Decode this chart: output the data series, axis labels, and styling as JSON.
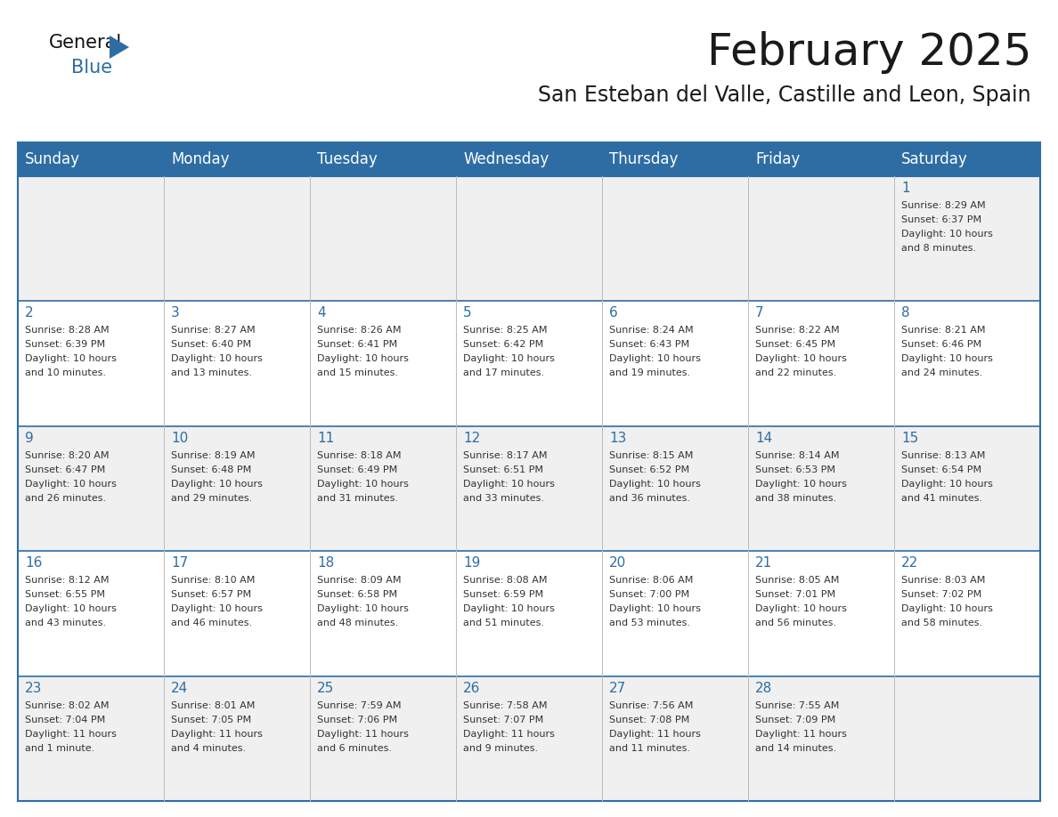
{
  "title": "February 2025",
  "subtitle": "San Esteban del Valle, Castille and Leon, Spain",
  "header_bg": "#2E6DA4",
  "header_text": "#FFFFFF",
  "day_names": [
    "Sunday",
    "Monday",
    "Tuesday",
    "Wednesday",
    "Thursday",
    "Friday",
    "Saturday"
  ],
  "row_bg_odd": "#F0F0F0",
  "row_bg_even": "#FFFFFF",
  "cell_text_color": "#333333",
  "date_number_color": "#2E6DA4",
  "separator_color": "#2E6DA4",
  "title_fontsize": 36,
  "subtitle_fontsize": 17,
  "header_fontsize": 12,
  "day_num_fontsize": 11,
  "cell_fontsize": 8,
  "days": [
    {
      "day": 1,
      "col": 6,
      "row": 0,
      "sunrise": "8:29 AM",
      "sunset": "6:37 PM",
      "daylight_line1": "Daylight: 10 hours",
      "daylight_line2": "and 8 minutes."
    },
    {
      "day": 2,
      "col": 0,
      "row": 1,
      "sunrise": "8:28 AM",
      "sunset": "6:39 PM",
      "daylight_line1": "Daylight: 10 hours",
      "daylight_line2": "and 10 minutes."
    },
    {
      "day": 3,
      "col": 1,
      "row": 1,
      "sunrise": "8:27 AM",
      "sunset": "6:40 PM",
      "daylight_line1": "Daylight: 10 hours",
      "daylight_line2": "and 13 minutes."
    },
    {
      "day": 4,
      "col": 2,
      "row": 1,
      "sunrise": "8:26 AM",
      "sunset": "6:41 PM",
      "daylight_line1": "Daylight: 10 hours",
      "daylight_line2": "and 15 minutes."
    },
    {
      "day": 5,
      "col": 3,
      "row": 1,
      "sunrise": "8:25 AM",
      "sunset": "6:42 PM",
      "daylight_line1": "Daylight: 10 hours",
      "daylight_line2": "and 17 minutes."
    },
    {
      "day": 6,
      "col": 4,
      "row": 1,
      "sunrise": "8:24 AM",
      "sunset": "6:43 PM",
      "daylight_line1": "Daylight: 10 hours",
      "daylight_line2": "and 19 minutes."
    },
    {
      "day": 7,
      "col": 5,
      "row": 1,
      "sunrise": "8:22 AM",
      "sunset": "6:45 PM",
      "daylight_line1": "Daylight: 10 hours",
      "daylight_line2": "and 22 minutes."
    },
    {
      "day": 8,
      "col": 6,
      "row": 1,
      "sunrise": "8:21 AM",
      "sunset": "6:46 PM",
      "daylight_line1": "Daylight: 10 hours",
      "daylight_line2": "and 24 minutes."
    },
    {
      "day": 9,
      "col": 0,
      "row": 2,
      "sunrise": "8:20 AM",
      "sunset": "6:47 PM",
      "daylight_line1": "Daylight: 10 hours",
      "daylight_line2": "and 26 minutes."
    },
    {
      "day": 10,
      "col": 1,
      "row": 2,
      "sunrise": "8:19 AM",
      "sunset": "6:48 PM",
      "daylight_line1": "Daylight: 10 hours",
      "daylight_line2": "and 29 minutes."
    },
    {
      "day": 11,
      "col": 2,
      "row": 2,
      "sunrise": "8:18 AM",
      "sunset": "6:49 PM",
      "daylight_line1": "Daylight: 10 hours",
      "daylight_line2": "and 31 minutes."
    },
    {
      "day": 12,
      "col": 3,
      "row": 2,
      "sunrise": "8:17 AM",
      "sunset": "6:51 PM",
      "daylight_line1": "Daylight: 10 hours",
      "daylight_line2": "and 33 minutes."
    },
    {
      "day": 13,
      "col": 4,
      "row": 2,
      "sunrise": "8:15 AM",
      "sunset": "6:52 PM",
      "daylight_line1": "Daylight: 10 hours",
      "daylight_line2": "and 36 minutes."
    },
    {
      "day": 14,
      "col": 5,
      "row": 2,
      "sunrise": "8:14 AM",
      "sunset": "6:53 PM",
      "daylight_line1": "Daylight: 10 hours",
      "daylight_line2": "and 38 minutes."
    },
    {
      "day": 15,
      "col": 6,
      "row": 2,
      "sunrise": "8:13 AM",
      "sunset": "6:54 PM",
      "daylight_line1": "Daylight: 10 hours",
      "daylight_line2": "and 41 minutes."
    },
    {
      "day": 16,
      "col": 0,
      "row": 3,
      "sunrise": "8:12 AM",
      "sunset": "6:55 PM",
      "daylight_line1": "Daylight: 10 hours",
      "daylight_line2": "and 43 minutes."
    },
    {
      "day": 17,
      "col": 1,
      "row": 3,
      "sunrise": "8:10 AM",
      "sunset": "6:57 PM",
      "daylight_line1": "Daylight: 10 hours",
      "daylight_line2": "and 46 minutes."
    },
    {
      "day": 18,
      "col": 2,
      "row": 3,
      "sunrise": "8:09 AM",
      "sunset": "6:58 PM",
      "daylight_line1": "Daylight: 10 hours",
      "daylight_line2": "and 48 minutes."
    },
    {
      "day": 19,
      "col": 3,
      "row": 3,
      "sunrise": "8:08 AM",
      "sunset": "6:59 PM",
      "daylight_line1": "Daylight: 10 hours",
      "daylight_line2": "and 51 minutes."
    },
    {
      "day": 20,
      "col": 4,
      "row": 3,
      "sunrise": "8:06 AM",
      "sunset": "7:00 PM",
      "daylight_line1": "Daylight: 10 hours",
      "daylight_line2": "and 53 minutes."
    },
    {
      "day": 21,
      "col": 5,
      "row": 3,
      "sunrise": "8:05 AM",
      "sunset": "7:01 PM",
      "daylight_line1": "Daylight: 10 hours",
      "daylight_line2": "and 56 minutes."
    },
    {
      "day": 22,
      "col": 6,
      "row": 3,
      "sunrise": "8:03 AM",
      "sunset": "7:02 PM",
      "daylight_line1": "Daylight: 10 hours",
      "daylight_line2": "and 58 minutes."
    },
    {
      "day": 23,
      "col": 0,
      "row": 4,
      "sunrise": "8:02 AM",
      "sunset": "7:04 PM",
      "daylight_line1": "Daylight: 11 hours",
      "daylight_line2": "and 1 minute."
    },
    {
      "day": 24,
      "col": 1,
      "row": 4,
      "sunrise": "8:01 AM",
      "sunset": "7:05 PM",
      "daylight_line1": "Daylight: 11 hours",
      "daylight_line2": "and 4 minutes."
    },
    {
      "day": 25,
      "col": 2,
      "row": 4,
      "sunrise": "7:59 AM",
      "sunset": "7:06 PM",
      "daylight_line1": "Daylight: 11 hours",
      "daylight_line2": "and 6 minutes."
    },
    {
      "day": 26,
      "col": 3,
      "row": 4,
      "sunrise": "7:58 AM",
      "sunset": "7:07 PM",
      "daylight_line1": "Daylight: 11 hours",
      "daylight_line2": "and 9 minutes."
    },
    {
      "day": 27,
      "col": 4,
      "row": 4,
      "sunrise": "7:56 AM",
      "sunset": "7:08 PM",
      "daylight_line1": "Daylight: 11 hours",
      "daylight_line2": "and 11 minutes."
    },
    {
      "day": 28,
      "col": 5,
      "row": 4,
      "sunrise": "7:55 AM",
      "sunset": "7:09 PM",
      "daylight_line1": "Daylight: 11 hours",
      "daylight_line2": "and 14 minutes."
    }
  ]
}
